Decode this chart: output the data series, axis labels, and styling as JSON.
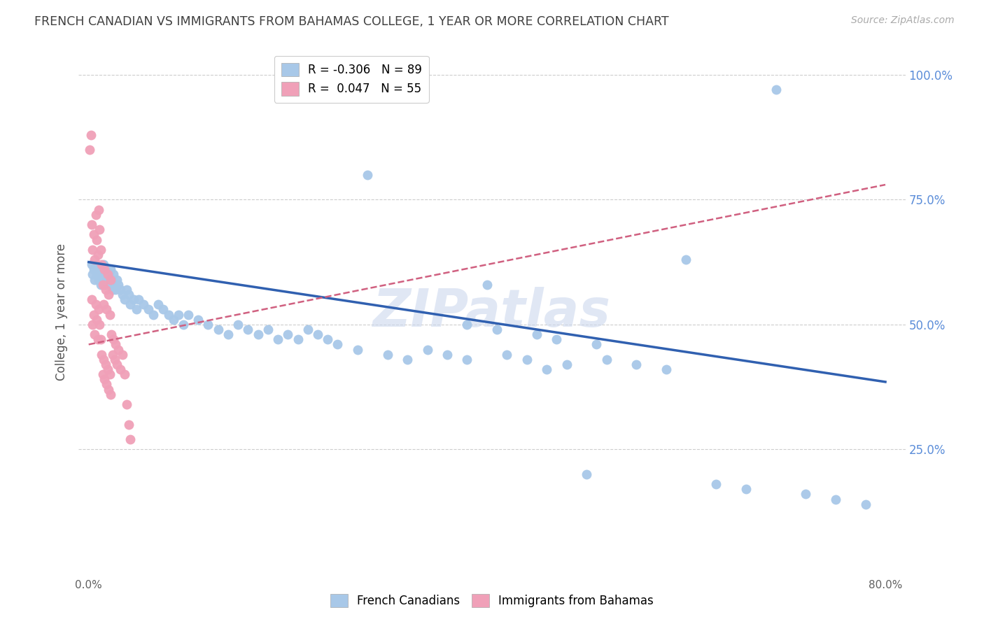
{
  "title": "FRENCH CANADIAN VS IMMIGRANTS FROM BAHAMAS COLLEGE, 1 YEAR OR MORE CORRELATION CHART",
  "source": "Source: ZipAtlas.com",
  "ylabel": "College, 1 year or more",
  "x_tick_labels_show": [
    "0.0%",
    "80.0%"
  ],
  "x_tick_values_show": [
    0.0,
    0.8
  ],
  "y_tick_labels_right": [
    "100.0%",
    "75.0%",
    "50.0%",
    "25.0%"
  ],
  "y_tick_values": [
    0.25,
    0.5,
    0.75,
    1.0
  ],
  "xlim": [
    -0.01,
    0.82
  ],
  "ylim": [
    0.0,
    1.05
  ],
  "legend_entry_blue": "R = -0.306   N = 89",
  "legend_entry_pink": "R =  0.047   N = 55",
  "blue_color": "#a8c8e8",
  "pink_color": "#f0a0b8",
  "blue_line_color": "#3060b0",
  "pink_line_color": "#d06080",
  "title_color": "#404040",
  "watermark": "ZIPatlas",
  "bottom_legend_blue": "French Canadians",
  "bottom_legend_pink": "Immigrants from Bahamas",
  "blue_line_x0": 0.0,
  "blue_line_y0": 0.625,
  "blue_line_x1": 0.8,
  "blue_line_y1": 0.385,
  "pink_line_x0": 0.0,
  "pink_line_y0": 0.46,
  "pink_line_x1": 0.8,
  "pink_line_y1": 0.78,
  "blue_x": [
    0.003,
    0.004,
    0.005,
    0.006,
    0.007,
    0.008,
    0.009,
    0.01,
    0.011,
    0.012,
    0.013,
    0.014,
    0.015,
    0.016,
    0.017,
    0.018,
    0.019,
    0.02,
    0.021,
    0.022,
    0.023,
    0.024,
    0.025,
    0.026,
    0.027,
    0.028,
    0.03,
    0.032,
    0.034,
    0.036,
    0.038,
    0.04,
    0.042,
    0.045,
    0.048,
    0.05,
    0.055,
    0.06,
    0.065,
    0.07,
    0.075,
    0.08,
    0.085,
    0.09,
    0.095,
    0.1,
    0.11,
    0.12,
    0.13,
    0.14,
    0.15,
    0.16,
    0.17,
    0.18,
    0.19,
    0.2,
    0.21,
    0.22,
    0.23,
    0.24,
    0.25,
    0.27,
    0.28,
    0.3,
    0.32,
    0.34,
    0.36,
    0.38,
    0.4,
    0.42,
    0.44,
    0.46,
    0.48,
    0.5,
    0.52,
    0.55,
    0.58,
    0.6,
    0.63,
    0.66,
    0.69,
    0.72,
    0.75,
    0.78,
    0.38,
    0.41,
    0.45,
    0.47,
    0.51
  ],
  "blue_y": [
    0.62,
    0.6,
    0.61,
    0.59,
    0.62,
    0.6,
    0.61,
    0.59,
    0.6,
    0.58,
    0.61,
    0.59,
    0.62,
    0.6,
    0.58,
    0.61,
    0.59,
    0.6,
    0.58,
    0.61,
    0.59,
    0.57,
    0.6,
    0.58,
    0.57,
    0.59,
    0.58,
    0.57,
    0.56,
    0.55,
    0.57,
    0.56,
    0.54,
    0.55,
    0.53,
    0.55,
    0.54,
    0.53,
    0.52,
    0.54,
    0.53,
    0.52,
    0.51,
    0.52,
    0.5,
    0.52,
    0.51,
    0.5,
    0.49,
    0.48,
    0.5,
    0.49,
    0.48,
    0.49,
    0.47,
    0.48,
    0.47,
    0.49,
    0.48,
    0.47,
    0.46,
    0.45,
    0.8,
    0.44,
    0.43,
    0.45,
    0.44,
    0.43,
    0.58,
    0.44,
    0.43,
    0.41,
    0.42,
    0.2,
    0.43,
    0.42,
    0.41,
    0.63,
    0.18,
    0.17,
    0.97,
    0.16,
    0.15,
    0.14,
    0.5,
    0.49,
    0.48,
    0.47,
    0.46
  ],
  "pink_x": [
    0.003,
    0.004,
    0.005,
    0.006,
    0.007,
    0.008,
    0.009,
    0.01,
    0.011,
    0.012,
    0.013,
    0.014,
    0.015,
    0.016,
    0.017,
    0.018,
    0.019,
    0.02,
    0.021,
    0.022,
    0.003,
    0.004,
    0.005,
    0.006,
    0.007,
    0.008,
    0.009,
    0.01,
    0.011,
    0.012,
    0.013,
    0.014,
    0.015,
    0.016,
    0.017,
    0.018,
    0.019,
    0.02,
    0.021,
    0.022,
    0.023,
    0.024,
    0.025,
    0.026,
    0.027,
    0.028,
    0.03,
    0.032,
    0.034,
    0.036,
    0.038,
    0.04,
    0.042,
    0.001,
    0.002
  ],
  "pink_y": [
    0.55,
    0.5,
    0.52,
    0.48,
    0.54,
    0.51,
    0.47,
    0.53,
    0.5,
    0.47,
    0.62,
    0.58,
    0.54,
    0.61,
    0.57,
    0.53,
    0.6,
    0.56,
    0.52,
    0.59,
    0.7,
    0.65,
    0.68,
    0.63,
    0.72,
    0.67,
    0.64,
    0.73,
    0.69,
    0.65,
    0.44,
    0.4,
    0.43,
    0.39,
    0.42,
    0.38,
    0.41,
    0.37,
    0.4,
    0.36,
    0.48,
    0.44,
    0.47,
    0.43,
    0.46,
    0.42,
    0.45,
    0.41,
    0.44,
    0.4,
    0.34,
    0.3,
    0.27,
    0.85,
    0.88
  ]
}
